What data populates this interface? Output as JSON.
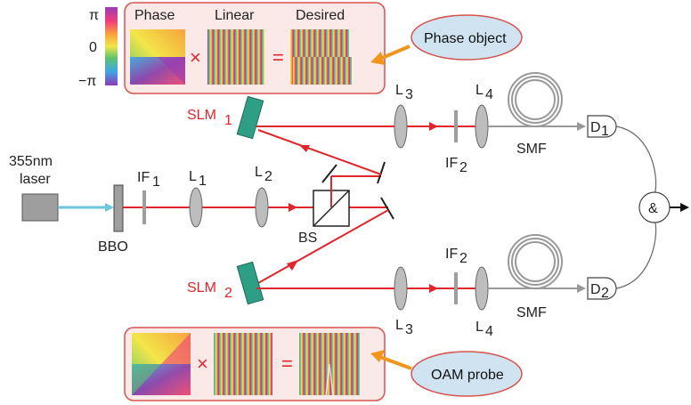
{
  "colorbar": {
    "top": "π",
    "middle": "0",
    "bottom": "−π"
  },
  "top_panel": {
    "title_phase": "Phase",
    "title_linear": "Linear",
    "title_desired": "Desired",
    "times": "×",
    "equals": "="
  },
  "bottom_panel": {
    "times": "×",
    "equals": "="
  },
  "callouts": {
    "phase_object": "Phase object",
    "oam_probe": "OAM probe"
  },
  "labels": {
    "laser_line1": "355nm",
    "laser_line2": "laser",
    "bbo": "BBO",
    "if1": "IF",
    "if1_sub": "1",
    "l1": "L",
    "l1_sub": "1",
    "l2": "L",
    "l2_sub": "2",
    "bs": "BS",
    "slm1": "SLM",
    "slm1_sub": "1",
    "slm2": "SLM",
    "slm2_sub": "2",
    "l3_top": "L",
    "l3_top_sub": "3",
    "l4_top": "L",
    "l4_top_sub": "4",
    "if2_top": "IF",
    "if2_top_sub": "2",
    "smf_top": "SMF",
    "l3_bot": "L",
    "l3_bot_sub": "3",
    "l4_bot": "L",
    "l4_bot_sub": "4",
    "if2_bot": "IF",
    "if2_bot_sub": "2",
    "smf_bot": "SMF",
    "d1": "D",
    "d1_sub": "1",
    "d2": "D",
    "d2_sub": "2",
    "coincidence": "&"
  },
  "colors": {
    "beam": "#e0262b",
    "pump": "#6cc6dd",
    "fiber": "#999999",
    "slm": "#2e9e84",
    "panel_border": "#d9534f",
    "panel_fill": "#fbe9e7",
    "callout_fill": "#cfe3f1",
    "arrow": "#f0961e"
  }
}
